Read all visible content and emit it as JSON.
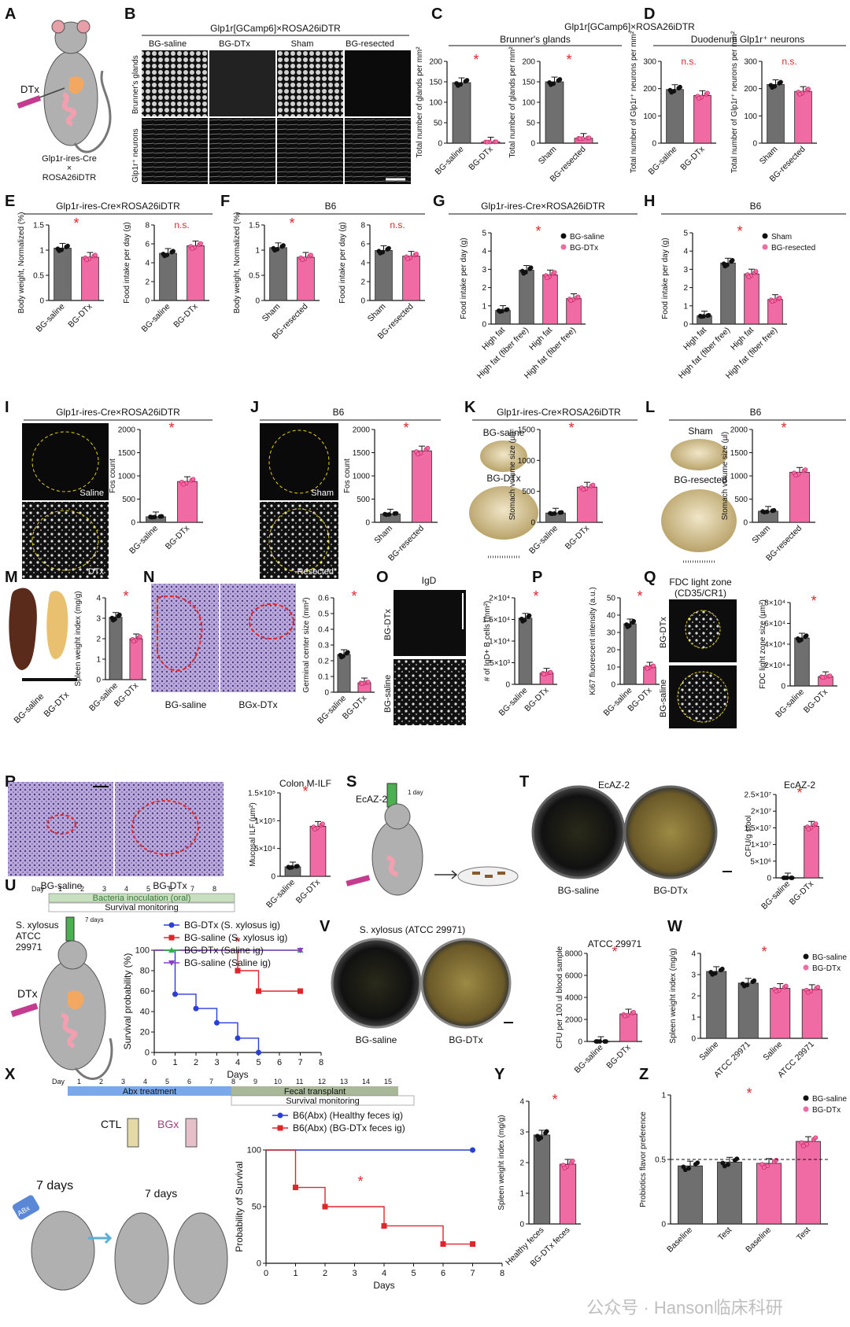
{
  "colors": {
    "gray": "#6f6f6f",
    "pink": "#f06ba3",
    "red": "#e0262a",
    "blue": "#2a3fd6",
    "green": "#2bb34a",
    "purple": "#8a3fc7"
  },
  "panel_labels": [
    "A",
    "B",
    "C",
    "D",
    "E",
    "F",
    "G",
    "H",
    "I",
    "J",
    "K",
    "L",
    "M",
    "N",
    "O",
    "P",
    "Q",
    "R",
    "S",
    "T",
    "U",
    "V",
    "W",
    "X",
    "Y",
    "Z"
  ],
  "texts": {
    "a_dtx": "DTx",
    "a_mouse_l1": "Glp1r-ires-Cre",
    "a_mouse_l2": "×",
    "a_mouse_l3": "ROSA26iDTR",
    "b_title": "Glp1r[GCamp6]×ROSA26iDTR",
    "b_cols": [
      "BG-saline",
      "BG-DTx",
      "Sham",
      "BG-resected"
    ],
    "b_row1": "Brunner's glands",
    "b_row2": "Glp1r⁺ neurons",
    "cd_title": "Glp1r[GCamp6]×ROSA26iDTR",
    "c_sub": "Brunner's glands",
    "d_sub": "Duodenum Glp1r⁺ neurons",
    "e_title": "Glp1r-ires-Cre×ROSA26iDTR",
    "f_title": "B6",
    "g_title": "Glp1r-ires-Cre×ROSA26iDTR",
    "h_title": "B6",
    "i_title": "Glp1r-ires-Cre×ROSA26iDTR",
    "i_img1": "Saline",
    "i_img2": "DTx",
    "j_title": "B6",
    "j_img1": "Sham",
    "j_img2": "Resected",
    "k_title": "Glp1r-ires-Cre×ROSA26iDTR",
    "k_img1": "BG-saline",
    "k_img2": "BG-DTx",
    "l_title": "B6",
    "l_img1": "Sham",
    "l_img2": "BG-resected",
    "m_img": [
      "BG-saline",
      "BG-DTx"
    ],
    "n_img": [
      "BG-saline",
      "BGx-DTx"
    ],
    "o_title": "IgD",
    "o_rows": [
      "BG-DTx",
      "BG-saline"
    ],
    "q_title_l1": "FDC light zone",
    "q_title_l2": "(CD35/CR1)",
    "q_rows": [
      "BG-DTx",
      "BG-saline"
    ],
    "r_img": [
      "BG-saline",
      "BG-DTx"
    ],
    "s_label": "EcAZ-2",
    "s_day": "1 day",
    "t_title": "EcAZ-2",
    "t_img": [
      "BG-saline",
      "BG-DTx"
    ],
    "u_day": "Day",
    "u_days": [
      "1",
      "2",
      "3",
      "4",
      "5",
      "6",
      "7",
      "8"
    ],
    "u_bar1": "Bacteria inoculation (oral)",
    "u_bar2": "Survival monitoring",
    "u_strain_l1": "S. xylosus",
    "u_strain_l2": "ATCC",
    "u_strain_l3": "29971",
    "u_7days": "7 days",
    "u_dtx": "DTx",
    "v_title": "S. xylosus (ATCC 29971)",
    "v_img": [
      "BG-saline",
      "BG-DTx"
    ],
    "x_day": "Day",
    "x_days": [
      "1",
      "2",
      "3",
      "4",
      "5",
      "6",
      "7",
      "8",
      "9",
      "10",
      "11",
      "12",
      "13",
      "14",
      "15"
    ],
    "x_bar1": "Abx treatment",
    "x_bar2": "Fecal transplant",
    "x_bar3": "Survival monitoring",
    "x_ctl": "CTL",
    "x_bgx": "BGx",
    "x_7days_a": "7 days",
    "x_7days_b": "7 days",
    "x_abx": "ABx",
    "watermark": "公众号 · Hanson临床科研",
    "sig": "*",
    "ns": "n.s."
  },
  "chart_data": [
    {
      "id": "C1",
      "type": "bar",
      "categories": [
        "BG-saline",
        "BG-DTx"
      ],
      "values": [
        148,
        3
      ],
      "ylabel": "Total number of glands per mm²",
      "ylim": [
        0,
        200
      ],
      "yticks": [
        0,
        50,
        100,
        150,
        200
      ],
      "sig": "*"
    },
    {
      "id": "C2",
      "type": "bar",
      "categories": [
        "Sham",
        "BG-resected"
      ],
      "values": [
        150,
        12
      ],
      "ylabel": "Total number of glands per mm²",
      "ylim": [
        0,
        200
      ],
      "yticks": [
        0,
        50,
        100,
        150,
        200
      ],
      "sig": "*"
    },
    {
      "id": "D1",
      "type": "bar",
      "categories": [
        "BG-saline",
        "BG-DTx"
      ],
      "values": [
        197,
        175
      ],
      "ylabel": "Total number of Glp1r⁺ neurons per mm²",
      "ylim": [
        0,
        300
      ],
      "yticks": [
        0,
        100,
        200,
        300
      ],
      "sig": "n.s."
    },
    {
      "id": "D2",
      "type": "bar",
      "categories": [
        "Sham",
        "BG-resected"
      ],
      "values": [
        215,
        190
      ],
      "ylabel": "Total number of Glp1r⁺ neurons per mm²",
      "ylim": [
        0,
        300
      ],
      "yticks": [
        0,
        100,
        200,
        300
      ],
      "sig": "n.s."
    },
    {
      "id": "E1",
      "type": "bar",
      "categories": [
        "BG-saline",
        "BG-DTx"
      ],
      "values": [
        1.04,
        0.86
      ],
      "ylabel": "Body weight, Normalized (%)",
      "ylim": [
        0,
        1.5
      ],
      "yticks": [
        0,
        0.5,
        1.0,
        1.5
      ],
      "sig": "*"
    },
    {
      "id": "E2",
      "type": "bar",
      "categories": [
        "BG-saline",
        "BG-DTx"
      ],
      "values": [
        5.0,
        5.8
      ],
      "ylabel": "Food intake per day (g)",
      "ylim": [
        0,
        8
      ],
      "yticks": [
        0,
        2,
        4,
        6,
        8
      ],
      "sig": "n.s."
    },
    {
      "id": "F1",
      "type": "bar",
      "categories": [
        "Sham",
        "BG-resected"
      ],
      "values": [
        1.05,
        0.86
      ],
      "ylabel": "Body weight, Normalized (%)",
      "ylim": [
        0,
        1.5
      ],
      "yticks": [
        0,
        0.5,
        1.0,
        1.5
      ],
      "sig": "*"
    },
    {
      "id": "F2",
      "type": "bar",
      "categories": [
        "Sham",
        "BG-resected"
      ],
      "values": [
        5.3,
        4.7
      ],
      "ylabel": "Food intake per day (g)",
      "ylim": [
        0,
        8
      ],
      "yticks": [
        0,
        2,
        4,
        6,
        8
      ],
      "sig": "n.s."
    },
    {
      "id": "G",
      "type": "bar",
      "categories": [
        "High fat",
        "High fat (fiber free)",
        "High fat",
        "High fat (fiber free)"
      ],
      "values": [
        0.75,
        2.95,
        2.7,
        1.4
      ],
      "group": [
        0,
        0,
        1,
        1
      ],
      "ylabel": "Food intake per day (g)",
      "ylim": [
        0,
        5
      ],
      "yticks": [
        0,
        1,
        2,
        3,
        4,
        5
      ],
      "legend": [
        "BG-saline",
        "BG-DTx"
      ],
      "sig": "*"
    },
    {
      "id": "H",
      "type": "bar",
      "categories": [
        "High fat",
        "High fat (fiber free)",
        "High fat",
        "High fat (fiber free)"
      ],
      "values": [
        0.45,
        3.35,
        2.75,
        1.35
      ],
      "group": [
        0,
        0,
        1,
        1
      ],
      "ylabel": "Food intake per day (g)",
      "ylim": [
        0,
        5
      ],
      "yticks": [
        0,
        1,
        2,
        3,
        4,
        5
      ],
      "legend": [
        "Sham",
        "BG-resected"
      ],
      "sig": "*"
    },
    {
      "id": "I",
      "type": "bar",
      "categories": [
        "BG-saline",
        "BG-DTx"
      ],
      "values": [
        120,
        880
      ],
      "ylabel": "Fos count",
      "ylim": [
        0,
        2000
      ],
      "yticks": [
        0,
        500,
        1000,
        1500,
        2000
      ],
      "sig": "*"
    },
    {
      "id": "J",
      "type": "bar",
      "categories": [
        "Sham",
        "BG-resected"
      ],
      "values": [
        180,
        1540
      ],
      "ylabel": "Fos count",
      "ylim": [
        0,
        2000
      ],
      "yticks": [
        0,
        500,
        1000,
        1500,
        2000
      ],
      "sig": "*"
    },
    {
      "id": "K",
      "type": "bar",
      "categories": [
        "BG-saline",
        "BG-DTx"
      ],
      "values": [
        150,
        570
      ],
      "ylabel": "Stomach volume size (µl)",
      "ylim": [
        0,
        1500
      ],
      "yticks": [
        0,
        500,
        1000,
        1500
      ],
      "sig": "*"
    },
    {
      "id": "L",
      "type": "bar",
      "categories": [
        "Sham",
        "BG-resected"
      ],
      "values": [
        240,
        1080
      ],
      "ylabel": "Stomach volume size (µl)",
      "ylim": [
        0,
        2000
      ],
      "yticks": [
        0,
        500,
        1000,
        1500,
        2000
      ],
      "sig": "*"
    },
    {
      "id": "M",
      "type": "bar",
      "categories": [
        "BG-saline",
        "BG-DTx"
      ],
      "values": [
        3.05,
        2.0
      ],
      "ylabel": "Spleen weight index (mg/g)",
      "ylim": [
        0,
        4
      ],
      "yticks": [
        0,
        1,
        2,
        3,
        4
      ],
      "sig": "*"
    },
    {
      "id": "N",
      "type": "bar",
      "categories": [
        "BG-saline",
        "BG-DTx"
      ],
      "values": [
        0.24,
        0.06
      ],
      "ylabel": "Germinal center size (mm²)",
      "ylim": [
        0,
        0.6
      ],
      "yticks": [
        0,
        0.1,
        0.2,
        0.3,
        0.4,
        0.5,
        0.6
      ],
      "sig": "*"
    },
    {
      "id": "O",
      "type": "bar",
      "categories": [
        "BG-saline",
        "BG-DTx"
      ],
      "values": [
        15300,
        2600
      ],
      "ylabel": "# of IgD+ B cells (mm²)",
      "ylim": [
        0,
        20000
      ],
      "ytick_labels": [
        "0",
        "5×10³",
        "1×10⁴",
        "1.5×10⁴",
        "2×10⁴"
      ],
      "yticks": [
        0,
        5000,
        10000,
        15000,
        20000
      ],
      "sig": "*"
    },
    {
      "id": "P",
      "type": "bar",
      "categories": [
        "BG-saline",
        "BG-DTx"
      ],
      "values": [
        35,
        10
      ],
      "ylabel": "Ki67 fluorescent intensity (a.u.)",
      "ylim": [
        0,
        50
      ],
      "yticks": [
        0,
        10,
        20,
        30,
        40,
        50
      ],
      "sig": "*"
    },
    {
      "id": "Q",
      "type": "bar",
      "categories": [
        "BG-saline",
        "BG-DTx"
      ],
      "values": [
        46000,
        9000
      ],
      "ylabel": "FDC light zone size (µm²)",
      "ylim": [
        0,
        80000
      ],
      "ytick_labels": [
        "0",
        "2×10⁴",
        "4×10⁴",
        "6×10⁴",
        "8×10⁴"
      ],
      "yticks": [
        0,
        20000,
        40000,
        60000,
        80000
      ],
      "sig": "*"
    },
    {
      "id": "R",
      "type": "bar",
      "categories": [
        "BG-saline",
        "BG-DTx"
      ],
      "values": [
        17000,
        90000
      ],
      "title": "Colon M-ILF",
      "ylabel": "Mucosal ILF (µm²)",
      "ylim": [
        0,
        150000
      ],
      "ytick_labels": [
        "0",
        "5×10⁴",
        "1×10⁵",
        "1.5×10⁵"
      ],
      "yticks": [
        0,
        50000,
        100000,
        150000
      ],
      "sig": "*"
    },
    {
      "id": "T",
      "type": "bar",
      "categories": [
        "BG-saline",
        "BG-DTx"
      ],
      "values": [
        0,
        15500000
      ],
      "title": "EcAZ-2",
      "ylabel": "CFU/g stool",
      "ylim": [
        0,
        25000000
      ],
      "ytick_labels": [
        "0",
        "5×10⁶",
        "1×10⁷",
        "1.5×10⁷",
        "2×10⁷",
        "2.5×10⁷"
      ],
      "yticks": [
        0,
        5000000,
        10000000,
        15000000,
        20000000,
        25000000
      ],
      "sig": "*"
    },
    {
      "id": "U",
      "type": "line",
      "xlabel": "Days",
      "ylabel": "Survival probability (%)",
      "xlim": [
        0,
        8
      ],
      "ylim": [
        0,
        100
      ],
      "xticks": [
        0,
        1,
        2,
        3,
        4,
        5,
        6,
        7,
        8
      ],
      "yticks": [
        0,
        20,
        40,
        60,
        80,
        100
      ],
      "sig": "*",
      "series": [
        {
          "name": "BG-DTx (S. xylosus ig)",
          "x": [
            0,
            1,
            2,
            3,
            4,
            5
          ],
          "y": [
            100,
            57,
            43,
            29,
            14,
            0
          ],
          "color": "#2a3fd6",
          "marker": "circle"
        },
        {
          "name": "BG-saline (S. xylosus ig)",
          "x": [
            0,
            4,
            5,
            7
          ],
          "y": [
            100,
            80,
            60,
            60
          ],
          "color": "#e0262a",
          "marker": "square"
        },
        {
          "name": "BG-DTx (Saline ig)",
          "x": [
            0,
            7
          ],
          "y": [
            100,
            100
          ],
          "color": "#2bb34a",
          "marker": "triangle"
        },
        {
          "name": "BG-saline (Saline ig)",
          "x": [
            0,
            7
          ],
          "y": [
            100,
            100
          ],
          "color": "#8a3fc7",
          "marker": "triangle-down"
        }
      ]
    },
    {
      "id": "V",
      "type": "bar",
      "categories": [
        "BG-saline",
        "BG-DTx"
      ],
      "values": [
        0,
        2500
      ],
      "title": "ATCC 29971",
      "ylabel": "CFU per 100 ul blood sample",
      "ylim": [
        0,
        8000
      ],
      "yticks": [
        0,
        2000,
        4000,
        6000,
        8000
      ],
      "sig": "*"
    },
    {
      "id": "W",
      "type": "bar",
      "categories": [
        "Saline",
        "ATCC 29971",
        "Saline",
        "ATCC 29971"
      ],
      "values": [
        3.15,
        2.6,
        2.35,
        2.3
      ],
      "group": [
        0,
        0,
        1,
        1
      ],
      "ylabel": "Spleen weight index (mg/g)",
      "ylim": [
        0,
        4
      ],
      "yticks": [
        0,
        1,
        2,
        3,
        4
      ],
      "legend": [
        "BG-saline",
        "BG-DTx"
      ],
      "sig": "*"
    },
    {
      "id": "X",
      "type": "line",
      "xlabel": "Days",
      "ylabel": "Probability of Survival",
      "xlim": [
        0,
        8
      ],
      "ylim": [
        0,
        100
      ],
      "xticks": [
        0,
        1,
        2,
        3,
        4,
        5,
        6,
        7,
        8
      ],
      "yticks": [
        0,
        50,
        100
      ],
      "sig": "*",
      "series": [
        {
          "name": "B6(Abx) (Healthy feces ig)",
          "x": [
            0,
            7
          ],
          "y": [
            100,
            100
          ],
          "color": "#2a3fd6",
          "marker": "circle"
        },
        {
          "name": "B6(Abx) (BG-DTx feces ig)",
          "x": [
            0,
            1,
            2,
            4,
            6,
            7
          ],
          "y": [
            100,
            67,
            50,
            33,
            17,
            17
          ],
          "color": "#e0262a",
          "marker": "square"
        }
      ]
    },
    {
      "id": "Y",
      "type": "bar",
      "categories": [
        "Healthy feces",
        "BG-DTx feces"
      ],
      "values": [
        2.9,
        1.95
      ],
      "ylabel": "Spleen weight index (mg/g)",
      "ylim": [
        0,
        4
      ],
      "yticks": [
        0,
        1,
        2,
        3,
        4
      ],
      "sig": "*"
    },
    {
      "id": "Z",
      "type": "bar",
      "categories": [
        "Baseline",
        "Test",
        "Baseline",
        "Test"
      ],
      "values": [
        0.45,
        0.48,
        0.47,
        0.64
      ],
      "group": [
        0,
        0,
        1,
        1
      ],
      "ylabel": "Probiotics flavor preference",
      "ylim": [
        0,
        1
      ],
      "yticks": [
        0,
        0.5,
        1.0
      ],
      "legend": [
        "BG-saline",
        "BG-DTx"
      ],
      "sig": "*"
    }
  ]
}
